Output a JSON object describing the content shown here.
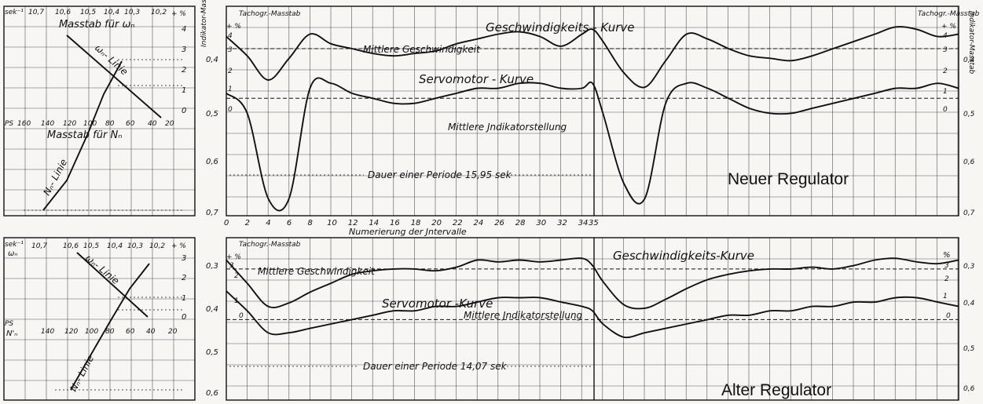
{
  "top": {
    "left_panel": {
      "omega_unit": "sek⁻¹",
      "omega_ticks": [
        "10,7",
        "10,6",
        "10,5",
        "10,4",
        "10,3",
        "10,2"
      ],
      "omega_scale_label": "Masstab für ωₙ",
      "pct_label": "+ %",
      "pct_ticks": [
        "4",
        "3",
        "2",
        "1",
        "0"
      ],
      "ps_label": "PS",
      "ps_ticks": [
        "160",
        "140",
        "120",
        "100",
        "80",
        "60",
        "40",
        "20"
      ],
      "n_scale_label": "Masstab für Nₙ",
      "omega_line_label": "ωₙ- Linie",
      "n_line_label": "Nₙ- Linie"
    },
    "left_axis_label": "Indikator-Masstab",
    "left_axis_ticks": [
      "0,4",
      "0,5",
      "0,6",
      "0,7"
    ],
    "tacho_label_left": "Tachogr.-Masstab",
    "tacho_pct_left": "+ %",
    "tacho_ticks_left": [
      "4",
      "3",
      "2",
      "1",
      "0"
    ],
    "tacho_label_right": "Tachogr.-Masstab",
    "tacho_pct_right": "+ %",
    "tacho_ticks_right": [
      "4",
      "3",
      "2",
      "1",
      "0"
    ],
    "right_axis_label": "Indikator-Masstab",
    "right_axis_ticks": [
      "0,4",
      "0,5",
      "0,6",
      "0,7"
    ],
    "speed_curve_label": "Geschwindigkeits -   Kurve",
    "mean_speed_label": "Mittlere Geschwindigkeit",
    "servo_curve_label": "Servomotor - Kurve",
    "mean_indicator_label": "Mittlere Jndikatorstellung",
    "period_label": "Dauer einer Periode 15,95 sek",
    "title": "Neuer Regulator",
    "x_ticks": [
      "0",
      "2",
      "4",
      "6",
      "8",
      "10",
      "12",
      "14",
      "16",
      "18",
      "20",
      "22",
      "24",
      "26",
      "28",
      "30",
      "32",
      "34",
      "35"
    ],
    "x_axis_label": "Numerierung der Jntervalle"
  },
  "bottom": {
    "left_panel": {
      "omega_unit": "sek⁻¹",
      "omega_symbol": "ωₙ",
      "omega_ticks": [
        "10,7",
        "10,6",
        "10,5",
        "10,4",
        "10,3",
        "10,2"
      ],
      "pct_label": "+ %",
      "pct_ticks": [
        "3",
        "2",
        "1",
        "0"
      ],
      "ps_label": "PS",
      "ps_symbol": "N'ₙ",
      "ps_ticks": [
        "140",
        "120",
        "100",
        "80",
        "60",
        "40",
        "20"
      ],
      "omega_line_label": "ωₙ- Linie",
      "n_line_label": "Nₙ- Linie"
    },
    "tacho_label_left": "Tachogr.-Masstab",
    "tacho_pct_left": "+ %",
    "tacho_ticks_left": [
      "3",
      "2",
      "1",
      "0"
    ],
    "right_pct": "%",
    "tacho_ticks_right": [
      "3",
      "2",
      "1",
      "0"
    ],
    "right_axis_ticks": [
      "0,3",
      "0,4",
      "0,5",
      "0,6"
    ],
    "left_axis_ticks": [
      "0,3",
      "0,4",
      "0,5",
      "0,6"
    ],
    "speed_curve_label": "Geschwindigkeits-Kurve",
    "mean_speed_label": "Mittlere Geschwindigkeit",
    "servo_curve_label": "Servomotor -Kurve",
    "mean_indicator_label": "Mittlere Jndikatorstellung",
    "period_label": "Dauer einer Periode 14,07 sek",
    "title": "Alter Regulator"
  },
  "chart_data": [
    {
      "type": "line",
      "title": "Neuer Regulator",
      "xlabel": "Numerierung der Jntervalle",
      "xlim": [
        0,
        70
      ],
      "x": [
        0,
        2,
        4,
        6,
        8,
        10,
        12,
        14,
        16,
        18,
        20,
        22,
        24,
        26,
        28,
        30,
        32,
        34,
        35,
        36,
        38,
        40,
        42,
        44,
        46,
        48,
        50,
        52,
        54,
        56,
        58,
        60,
        62,
        64,
        66,
        68,
        70
      ],
      "series": [
        {
          "name": "Geschwindigkeits-Kurve",
          "axis": "Tachogr. %",
          "ylim": [
            0,
            4
          ],
          "values": [
            3.2,
            2.4,
            1.4,
            2.3,
            3.3,
            2.9,
            2.7,
            2.5,
            2.4,
            2.5,
            2.6,
            2.9,
            3.1,
            3.3,
            3.4,
            3.2,
            2.8,
            3.3,
            3.5,
            3.0,
            1.7,
            1.1,
            2.2,
            3.3,
            3.1,
            2.7,
            2.4,
            2.3,
            2.2,
            2.4,
            2.7,
            3.0,
            3.3,
            3.6,
            3.5,
            3.2,
            3.3
          ]
        },
        {
          "name": "Servomotor-Kurve",
          "axis": "Indikator",
          "ylim": [
            0.35,
            0.72
          ],
          "values": [
            0.48,
            0.52,
            0.69,
            0.69,
            0.47,
            0.46,
            0.48,
            0.49,
            0.5,
            0.5,
            0.49,
            0.48,
            0.47,
            0.47,
            0.46,
            0.46,
            0.47,
            0.47,
            0.46,
            0.52,
            0.66,
            0.69,
            0.5,
            0.46,
            0.47,
            0.49,
            0.51,
            0.52,
            0.52,
            0.51,
            0.5,
            0.49,
            0.48,
            0.47,
            0.47,
            0.46,
            0.47
          ]
        }
      ],
      "mean_speed": 2.7,
      "mean_indicator": 0.49
    },
    {
      "type": "line",
      "title": "Alter Regulator",
      "xlim": [
        0,
        70
      ],
      "x": [
        0,
        2,
        4,
        6,
        8,
        10,
        12,
        14,
        16,
        18,
        20,
        22,
        24,
        26,
        28,
        30,
        32,
        34,
        35,
        36,
        38,
        40,
        42,
        44,
        46,
        48,
        50,
        52,
        54,
        56,
        58,
        60,
        62,
        64,
        66,
        68,
        70
      ],
      "series": [
        {
          "name": "Geschwindigkeits-Kurve",
          "axis": "Tachogr. %",
          "ylim": [
            0,
            3.3
          ],
          "values": [
            3.1,
            1.8,
            0.5,
            0.7,
            1.3,
            1.8,
            2.3,
            2.5,
            2.6,
            2.6,
            2.5,
            2.7,
            3.1,
            3.0,
            3.1,
            3.0,
            3.1,
            3.2,
            2.8,
            1.9,
            0.6,
            0.4,
            0.9,
            1.5,
            2.0,
            2.3,
            2.5,
            2.6,
            2.6,
            2.7,
            2.6,
            2.8,
            3.1,
            3.2,
            3.0,
            2.9,
            3.1
          ]
        },
        {
          "name": "Servomotor-Kurve",
          "axis": "Indikator",
          "ylim": [
            0.28,
            0.62
          ],
          "values": [
            0.375,
            0.42,
            0.47,
            0.47,
            0.46,
            0.45,
            0.44,
            0.43,
            0.42,
            0.42,
            0.41,
            0.41,
            0.4,
            0.39,
            0.39,
            0.39,
            0.4,
            0.41,
            0.42,
            0.45,
            0.48,
            0.47,
            0.46,
            0.45,
            0.44,
            0.43,
            0.43,
            0.42,
            0.42,
            0.41,
            0.41,
            0.4,
            0.4,
            0.39,
            0.39,
            0.4,
            0.41
          ]
        }
      ],
      "mean_speed": 2.6,
      "mean_indicator": 0.44
    }
  ]
}
